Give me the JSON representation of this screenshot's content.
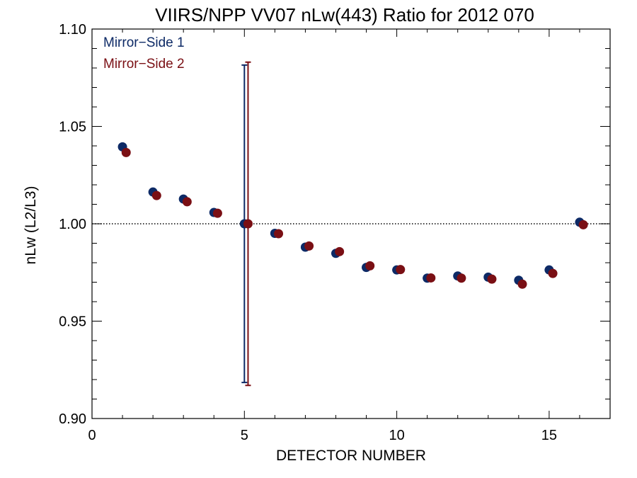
{
  "chart_data": {
    "type": "scatter",
    "title": "VIIRS/NPP VV07 nLw(443) Ratio for 2012 070",
    "xlabel": "DETECTOR NUMBER",
    "ylabel": "nLw (L2/L3)",
    "xlim": [
      0,
      17
    ],
    "ylim": [
      0.9,
      1.1
    ],
    "xticks": [
      0,
      5,
      10,
      15
    ],
    "xtick_labels": [
      "0",
      "5",
      "10",
      "15"
    ],
    "yticks": [
      0.9,
      0.95,
      1.0,
      1.05,
      1.1
    ],
    "ytick_labels": [
      "0.90",
      "0.95",
      "1.00",
      "1.05",
      "1.10"
    ],
    "reference_line": {
      "y": 1.0,
      "style": "dotted"
    },
    "legend_position": "top-left",
    "series": [
      {
        "name": "Mirror−Side 1",
        "color": "#0d2a66",
        "x": [
          1,
          2,
          3,
          4,
          5,
          6,
          7,
          8,
          9,
          10,
          11,
          12,
          13,
          14,
          15,
          16
        ],
        "y": [
          1.0395,
          1.0163,
          1.0127,
          1.0058,
          1.0,
          0.9951,
          0.988,
          0.9848,
          0.9776,
          0.9763,
          0.9721,
          0.9732,
          0.9726,
          0.971,
          0.9763,
          1.0008
        ],
        "error_bar": {
          "x": 5,
          "low": 0.9185,
          "high": 1.0815
        }
      },
      {
        "name": "Mirror−Side 2",
        "color": "#7a0f14",
        "x": [
          1,
          2,
          3,
          4,
          5,
          6,
          7,
          8,
          9,
          10,
          11,
          12,
          13,
          14,
          15,
          16
        ],
        "y": [
          1.0366,
          1.0145,
          1.0113,
          1.0054,
          1.0,
          0.9949,
          0.9886,
          0.9857,
          0.9784,
          0.9765,
          0.9722,
          0.9721,
          0.9716,
          0.969,
          0.9745,
          0.9995
        ],
        "error_bar": {
          "x": 5,
          "low": 0.917,
          "high": 1.083
        }
      }
    ]
  }
}
